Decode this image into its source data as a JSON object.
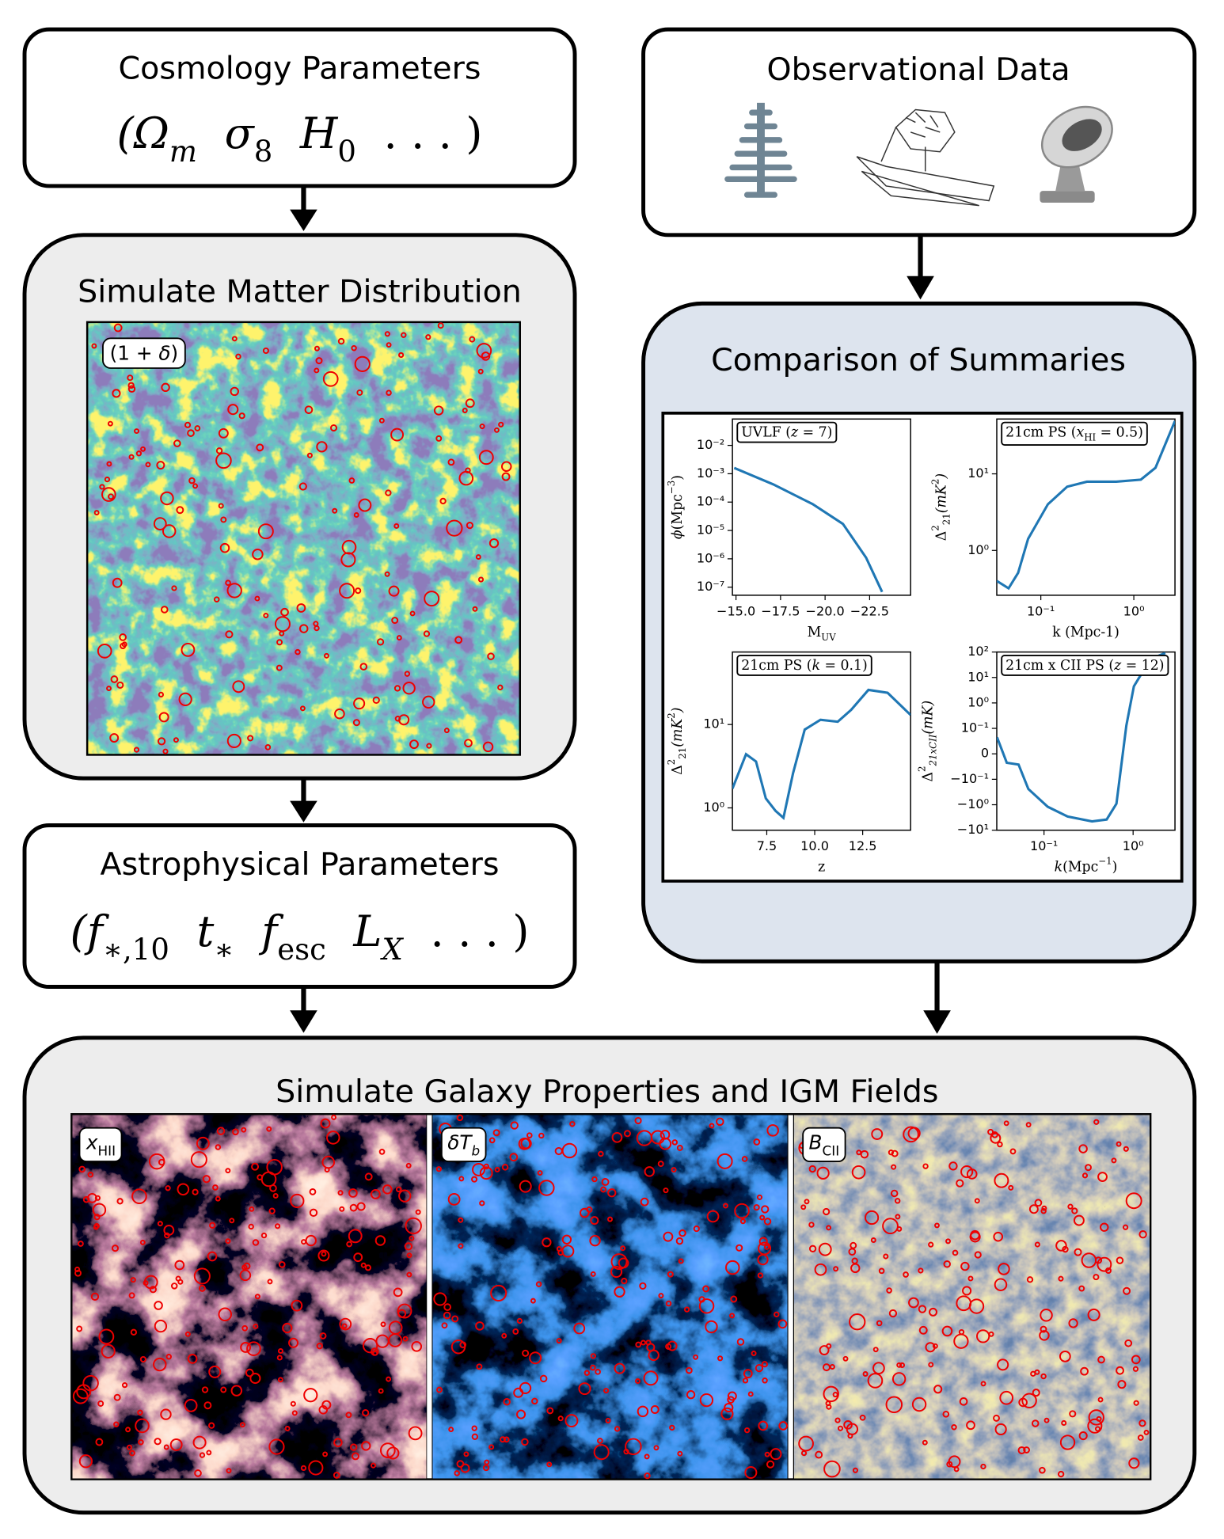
{
  "nodes": {
    "cosmology": {
      "title": "Cosmology Parameters",
      "formula": [
        {
          "text": "(Ω",
          "style": "italic"
        },
        {
          "text": "m",
          "style": "italic sub"
        },
        {
          "text": "  σ",
          "style": "italic"
        },
        {
          "text": "8",
          "style": "sub"
        },
        {
          "text": "  H",
          "style": "italic"
        },
        {
          "text": "0",
          "style": "sub"
        },
        {
          "text": "  . . . )"
        }
      ]
    },
    "matter": {
      "title": "Simulate Matter Distribution",
      "map_label": [
        {
          "text": "(1 + "
        },
        {
          "text": "δ",
          "style": "italic"
        },
        {
          "text": ")"
        }
      ]
    },
    "astro": {
      "title": "Astrophysical Parameters",
      "formula": [
        {
          "text": "(f",
          "style": "italic"
        },
        {
          "text": "∗,10",
          "style": "sub"
        },
        {
          "text": "  t",
          "style": "italic"
        },
        {
          "text": "∗",
          "style": "sub"
        },
        {
          "text": "  f",
          "style": "italic"
        },
        {
          "text": "esc",
          "style": "sub"
        },
        {
          "text": "  L",
          "style": "italic"
        },
        {
          "text": "X",
          "style": "italic sub"
        },
        {
          "text": "  . . . )"
        }
      ]
    },
    "observations": {
      "title": "Observational Data"
    },
    "comparison": {
      "title": "Comparison of Summaries",
      "charts": [
        {
          "type": "line",
          "color": "#1f77b4",
          "title": [
            {
              "text": "UVLF ("
            },
            {
              "text": "z",
              "style": "italic"
            },
            {
              "text": " = 7)"
            }
          ],
          "x_label": [
            {
              "text": "M"
            },
            {
              "text": "UV",
              "style": "sub"
            }
          ],
          "y_label": [
            {
              "text": "ϕ",
              "style": "italic"
            },
            {
              "text": "(Mpc"
            },
            {
              "text": "−3",
              "style": "sup"
            },
            {
              "text": ")"
            }
          ],
          "x": [
            -14.9,
            -17.1,
            -19.3,
            -21.0,
            -22.3,
            -23.2
          ],
          "values": [
            0.0016,
            0.00042,
            8.5e-05,
            1.7e-05,
            1.1e-06,
            6.8e-08
          ],
          "xlim": [
            -14.8,
            -24.8
          ],
          "ylim": [
            5.2e-08,
            0.085
          ],
          "yscale": "log",
          "xticks": [
            {
              "value": -15,
              "label": "−15.0"
            },
            {
              "value": -17.5,
              "label": "−17.5"
            },
            {
              "value": -20,
              "label": "−20.0"
            },
            {
              "value": -22.5,
              "label": "−22.5"
            }
          ],
          "yticks": [
            {
              "value": 0.01,
              "label": "10⁻²"
            },
            {
              "value": 0.001,
              "label": "10⁻³"
            },
            {
              "value": 0.0001,
              "label": "10⁻⁴"
            },
            {
              "value": 1e-05,
              "label": "10⁻⁵"
            },
            {
              "value": 1e-06,
              "label": "10⁻⁶"
            },
            {
              "value": 1e-07,
              "label": "10⁻⁷"
            }
          ]
        },
        {
          "type": "line",
          "color": "#1f77b4",
          "title": [
            {
              "text": "21cm PS ("
            },
            {
              "text": "x",
              "style": "italic"
            },
            {
              "text": "HI",
              "style": "sub"
            },
            {
              "text": " = 0.5)"
            }
          ],
          "x_label": [
            {
              "text": "k (Mpc-1)"
            }
          ],
          "y_label": [
            {
              "text": "Δ"
            },
            {
              "text": "2",
              "style": "sup"
            },
            {
              "text": "21",
              "style": "sub"
            },
            {
              "text": "(mK",
              "style": "italic"
            },
            {
              "text": "2",
              "style": "sup"
            },
            {
              "text": ")",
              "style": "italic"
            }
          ],
          "x": [
            0.0336,
            0.045,
            0.057,
            0.073,
            0.119,
            0.192,
            0.313,
            0.647,
            1.19,
            1.71,
            2.77
          ],
          "values": [
            0.4,
            0.32,
            0.51,
            1.42,
            4.0,
            6.8,
            7.9,
            7.9,
            8.4,
            12,
            49
          ],
          "xlim": [
            0.0336,
            2.77
          ],
          "ylim": [
            0.26,
            52
          ],
          "xscale": "log",
          "yscale": "log",
          "xticks": [
            {
              "value": 0.1,
              "label": "10⁻¹"
            },
            {
              "value": 1,
              "label": "10⁰"
            }
          ],
          "yticks": [
            {
              "value": 10,
              "label": "10¹"
            },
            {
              "value": 1,
              "label": "10⁰"
            }
          ]
        },
        {
          "type": "line",
          "color": "#1f77b4",
          "title": [
            {
              "text": "21cm PS ("
            },
            {
              "text": "k",
              "style": "italic"
            },
            {
              "text": " = 0.1)"
            }
          ],
          "x_label": [
            {
              "text": "z"
            }
          ],
          "y_label": [
            {
              "text": "Δ"
            },
            {
              "text": "2",
              "style": "sup"
            },
            {
              "text": "21",
              "style": "sub"
            },
            {
              "text": "(mK",
              "style": "italic"
            },
            {
              "text": "2",
              "style": "sup"
            },
            {
              "text": ")",
              "style": "italic"
            }
          ],
          "x": [
            5.71,
            6.42,
            6.94,
            7.45,
            7.96,
            8.37,
            8.87,
            9.48,
            10.3,
            11.2,
            11.9,
            12.8,
            13.8,
            15.0
          ],
          "values": [
            1.7,
            4.4,
            3.6,
            1.3,
            0.92,
            0.76,
            2.6,
            8.7,
            11.4,
            10.8,
            15,
            26,
            24,
            13
          ],
          "xlim": [
            5.71,
            15.0
          ],
          "ylim": [
            0.54,
            74
          ],
          "yscale": "log",
          "xticks": [
            7.5,
            {
              "value": 10,
              "label": "10.0"
            },
            12.5
          ],
          "yticks": [
            {
              "value": 10,
              "label": "10¹"
            },
            {
              "value": 1,
              "label": "10⁰"
            }
          ]
        },
        {
          "type": "line",
          "color": "#1f77b4",
          "title": [
            {
              "text": "21cm x CII PS ("
            },
            {
              "text": "z",
              "style": "italic"
            },
            {
              "text": " = 12)"
            }
          ],
          "x_label": [
            {
              "text": "k",
              "style": "italic"
            },
            {
              "text": "(Mpc"
            },
            {
              "text": "−1",
              "style": "sup"
            },
            {
              "text": ")"
            }
          ],
          "y_label": [
            {
              "text": "Δ"
            },
            {
              "text": "2",
              "style": "sup"
            },
            {
              "text": "21xCII",
              "style": "italic sub"
            },
            {
              "text": "(mK)",
              "style": "italic"
            }
          ],
          "x": [
            0.0297,
            0.0382,
            0.0518,
            0.0667,
            0.11,
            0.184,
            0.346,
            0.505,
            0.65,
            0.84,
            1.02,
            1.57,
            2.3
          ],
          "values": [
            0.065,
            -0.035,
            -0.042,
            -0.24,
            -1.2,
            -2.9,
            -4.5,
            -3.8,
            -0.91,
            0.13,
            4.5,
            54,
            91
          ],
          "xlim": [
            0.0295,
            2.95
          ],
          "ylim": [
            -10,
            100
          ],
          "xscale": "log",
          "yscale": "symlog",
          "linthresh": 0.1,
          "xticks": [
            {
              "value": 0.1,
              "label": "10⁻¹"
            },
            {
              "value": 1,
              "label": "10⁰"
            }
          ],
          "yticks": [
            {
              "value": 100,
              "label": "10²"
            },
            {
              "value": 10,
              "label": "10¹"
            },
            {
              "value": 1,
              "label": "10⁰"
            },
            {
              "value": 0.1,
              "label": "10⁻¹"
            },
            0,
            {
              "value": -0.1,
              "label": "−10⁻¹"
            },
            {
              "value": -1,
              "label": "−10⁰"
            },
            {
              "value": -10,
              "label": "−10¹"
            }
          ]
        }
      ]
    },
    "galaxy": {
      "title": "Simulate Galaxy Properties and IGM Fields",
      "maps": [
        {
          "label": [
            {
              "text": "x",
              "style": "italic"
            },
            {
              "text": "HII",
              "style": "sub"
            }
          ]
        },
        {
          "label": [
            {
              "text": "δT",
              "style": "italic"
            },
            {
              "text": "b",
              "style": "italic sub"
            }
          ]
        },
        {
          "label": [
            {
              "text": "B",
              "style": "italic"
            },
            {
              "text": "CII",
              "style": "sub"
            }
          ]
        }
      ]
    }
  }
}
